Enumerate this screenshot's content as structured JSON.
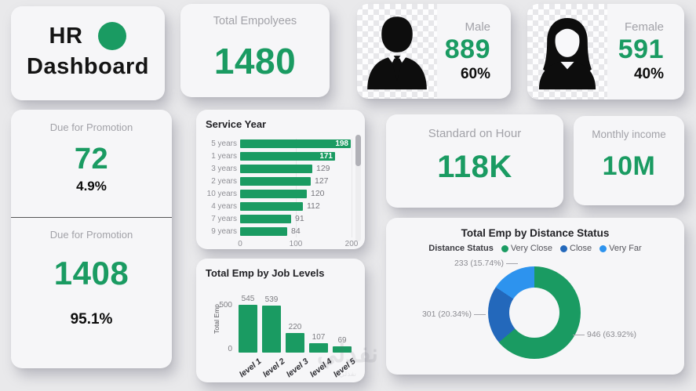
{
  "colors": {
    "green": "#1a9b62",
    "close_blue": "#2368bb",
    "far_blue": "#2d93ee",
    "page_bg": "#e9e9eb",
    "card_bg": "#f6f6f8"
  },
  "title_card": {
    "line1": "HR",
    "line2": "Dashboard"
  },
  "kpi": {
    "total_employees": {
      "label": "Total Empolyees",
      "value": "1480"
    },
    "male": {
      "label": "Male",
      "value": "889",
      "percent": "60%"
    },
    "female": {
      "label": "Female",
      "value": "591",
      "percent": "40%"
    },
    "promotion_top": {
      "label": "Due for Promotion",
      "value": "72",
      "percent": "4.9%"
    },
    "promotion_bottom": {
      "label": "Due for Promotion",
      "value": "1408",
      "percent": "95.1%"
    },
    "standard_hours": {
      "label": "Standard on Hour",
      "value": "118K"
    },
    "monthly_income": {
      "label": "Monthly income",
      "value": "10M"
    }
  },
  "watermark": {
    "text": "نفذلي",
    "subtext": "نفذلي"
  },
  "chart_data": [
    {
      "type": "bar",
      "orientation": "horizontal",
      "title": "Service Year",
      "categories": [
        "5 years",
        "1 years",
        "3 years",
        "2 years",
        "10 years",
        "4 years",
        "7 years",
        "9 years"
      ],
      "values": [
        198,
        171,
        129,
        127,
        120,
        112,
        91,
        84
      ],
      "xlim": [
        0,
        200
      ],
      "x_ticks": [
        "0",
        "100",
        "200"
      ],
      "bar_color": "#1a9b62",
      "grid": true,
      "has_scrollbar": true
    },
    {
      "type": "bar",
      "orientation": "vertical",
      "title": "Total Emp by Job Levels",
      "categories": [
        "level 1",
        "level 2",
        "level 3",
        "level 4",
        "level 5"
      ],
      "values": [
        545,
        539,
        220,
        107,
        69
      ],
      "ylabel": "Total Emp",
      "ylim": [
        0,
        560
      ],
      "y_ticks": [
        "500",
        "0"
      ],
      "bar_color": "#1a9b62"
    },
    {
      "type": "pie",
      "donut": true,
      "title": "Total Emp by Distance Status",
      "legend_title": "Distance Status",
      "legend_position": "top",
      "slices": [
        {
          "label": "Very Close",
          "value": 946,
          "pct": "63.92%",
          "callout": "946 (63.92%)",
          "color": "#1a9b62"
        },
        {
          "label": "Close",
          "value": 301,
          "pct": "20.34%",
          "callout": "301 (20.34%)",
          "color": "#2368bb"
        },
        {
          "label": "Very Far",
          "value": 233,
          "pct": "15.74%",
          "callout": "233 (15.74%)",
          "color": "#2d93ee"
        }
      ]
    }
  ]
}
